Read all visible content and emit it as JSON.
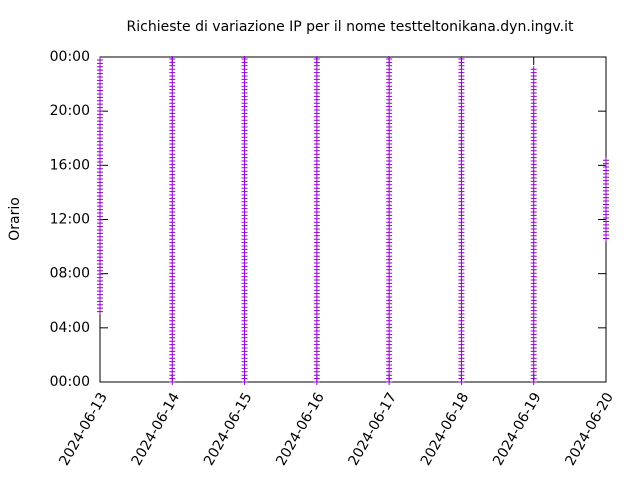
{
  "chart_data": {
    "type": "range",
    "title": "Richieste di variazione IP per il nome testteltonikana.dyn.ingv.it",
    "y_label": "Orario",
    "color": "#9400d3",
    "x": [
      "2024-06-13",
      "2024-06-14",
      "2024-06-15",
      "2024-06-16",
      "2024-06-17",
      "2024-06-18",
      "2024-06-19",
      "2024-06-20"
    ],
    "low": [
      5.2,
      0,
      0,
      0,
      0,
      0,
      0,
      10.6
    ],
    "high": [
      24,
      24,
      24,
      24,
      24,
      24,
      23.2,
      16.6
    ],
    "xlim": [
      "2024-06-13",
      "2024-06-20"
    ],
    "xticks": [
      "2024-06-13",
      "2024-06-14",
      "2024-06-15",
      "2024-06-16",
      "2024-06-17",
      "2024-06-18",
      "2024-06-19",
      "2024-06-20"
    ],
    "ylim": [
      0,
      24
    ],
    "yticks": [
      {
        "value": 0,
        "label": "00:00"
      },
      {
        "value": 4,
        "label": "04:00"
      },
      {
        "value": 8,
        "label": "08:00"
      },
      {
        "value": 12,
        "label": "12:00"
      },
      {
        "value": 16,
        "label": "16:00"
      },
      {
        "value": 20,
        "label": "20:00"
      },
      {
        "value": 24,
        "label": "00:00"
      }
    ]
  }
}
